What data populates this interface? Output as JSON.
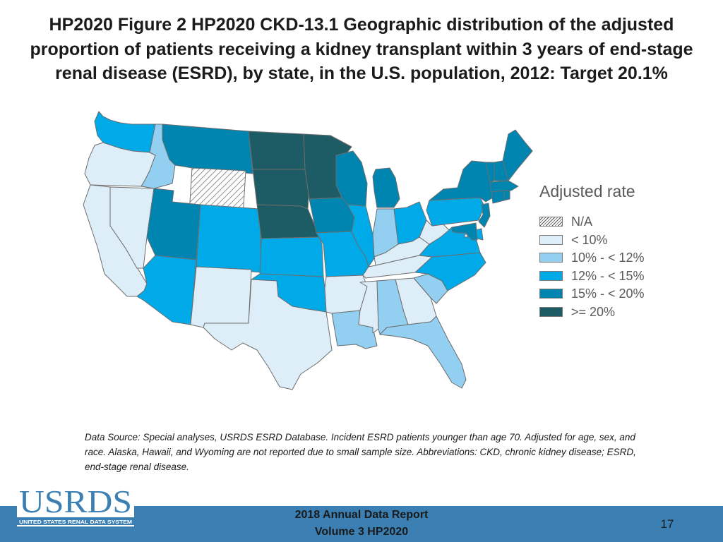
{
  "title": "HP2020 Figure 2 HP2020 CKD-13.1 Geographic distribution of the adjusted proportion of patients receiving a kidney transplant within 3 years of end-stage renal disease (ESRD), by state, in the U.S. population, 2012: Target 20.1%",
  "legend": {
    "title": "Adjusted rate",
    "items": [
      {
        "label": "N/A",
        "color": "hatch"
      },
      {
        "label": "< 10%",
        "color": "#deeef9"
      },
      {
        "label": "10% - < 12%",
        "color": "#92cff1"
      },
      {
        "label": "12% - < 15%",
        "color": "#00aae8"
      },
      {
        "label": "15% - < 20%",
        "color": "#0085b0"
      },
      {
        "label": ">= 20%",
        "color": "#1d5c65"
      }
    ]
  },
  "map_data": {
    "states": {
      "WA": "12% - < 15%",
      "OR": "< 10%",
      "CA": "< 10%",
      "NV": "< 10%",
      "ID": "10% - < 12%",
      "MT": "15% - < 20%",
      "WY": "N/A",
      "UT": "15% - < 20%",
      "AZ": "12% - < 15%",
      "CO": "12% - < 15%",
      "NM": "< 10%",
      "ND": ">= 20%",
      "SD": ">= 20%",
      "NE": ">= 20%",
      "KS": "12% - < 15%",
      "OK": "12% - < 15%",
      "TX": "< 10%",
      "MN": ">= 20%",
      "IA": "15% - < 20%",
      "MO": "12% - < 15%",
      "AR": "< 10%",
      "LA": "10% - < 12%",
      "WI": "15% - < 20%",
      "IL": "12% - < 15%",
      "MI": "15% - < 20%",
      "IN": "10% - < 12%",
      "OH": "12% - < 15%",
      "KY": "< 10%",
      "TN": "< 10%",
      "MS": "< 10%",
      "AL": "10% - < 12%",
      "GA": "< 10%",
      "FL": "10% - < 12%",
      "SC": "10% - < 12%",
      "NC": "12% - < 15%",
      "VA": "12% - < 15%",
      "WV": "< 10%",
      "PA": "12% - < 15%",
      "NY": "15% - < 20%",
      "VT": "15% - < 20%",
      "NH": "15% - < 20%",
      "ME": "15% - < 20%",
      "MA": "15% - < 20%",
      "CT": "15% - < 20%",
      "RI": "15% - < 20%",
      "NJ": "15% - < 20%",
      "DE": "12% - < 15%",
      "MD": "15% - < 20%",
      "DC": "< 10%"
    }
  },
  "footnote": "Data Source: Special analyses, USRDS ESRD Database. Incident ESRD patients younger than age 70. Adjusted for age, sex, and race. Alaska, Hawaii, and Wyoming are not reported due to small sample size. Abbreviations: CKD, chronic kidney disease; ESRD, end-stage renal disease.",
  "logo": {
    "text": "USRDS",
    "subtext": "UNITED STATES RENAL DATA SYSTEM",
    "color": "#3b7fb3"
  },
  "footer": {
    "line1": "2018 Annual Data Report",
    "line2": "Volume 3 HP2020",
    "page_number": "17",
    "color": "#3b7fb3"
  }
}
